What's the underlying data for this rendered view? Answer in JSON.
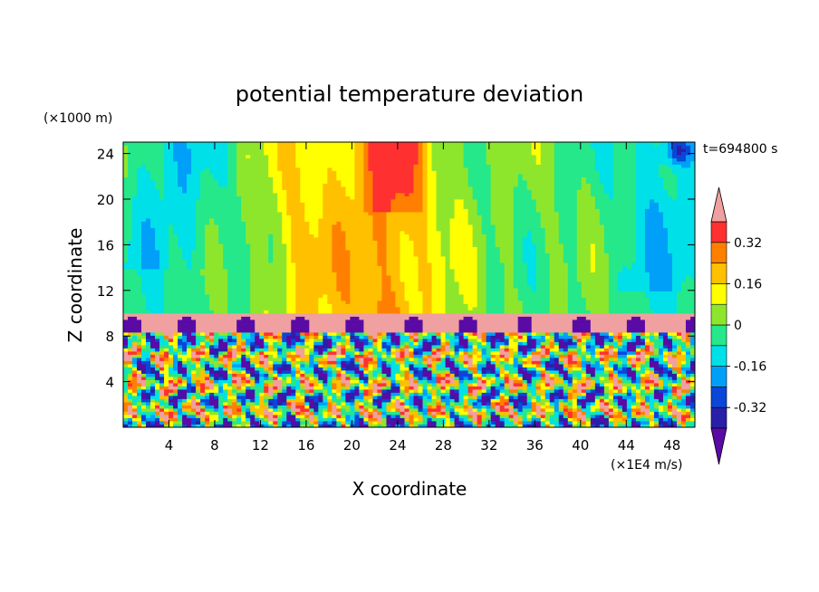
{
  "chart_data": {
    "type": "heatmap",
    "title": "potential temperature deviation",
    "xlabel": "X coordinate",
    "ylabel": "Z coordinate",
    "x_unit": "(×1E4 m/s)",
    "y_unit": "(×1000 m)",
    "time_label": "t=694800 s",
    "xlim": [
      0,
      50
    ],
    "ylim": [
      0,
      25
    ],
    "x_ticks": [
      "4",
      "8",
      "12",
      "16",
      "20",
      "24",
      "28",
      "32",
      "36",
      "40",
      "44",
      "48"
    ],
    "x_tick_values": [
      4,
      8,
      12,
      16,
      20,
      24,
      28,
      32,
      36,
      40,
      44,
      48
    ],
    "y_ticks": [
      "4",
      "8",
      "12",
      "16",
      "20",
      "24"
    ],
    "y_tick_values": [
      4,
      8,
      12,
      16,
      20,
      24
    ],
    "colorbar": {
      "levels": [
        -0.4,
        -0.32,
        -0.24,
        -0.16,
        -0.08,
        0,
        0.08,
        0.16,
        0.24,
        0.32,
        0.4
      ],
      "labels": [
        "-0.32",
        "-0.16",
        "0",
        "0.16",
        "0.32"
      ],
      "label_values": [
        -0.32,
        -0.16,
        0,
        0.16,
        0.32
      ],
      "colors": [
        "#5a0aa5",
        "#2a1fa8",
        "#0a46d8",
        "#00a0f8",
        "#00e0e8",
        "#25e88a",
        "#8ee62c",
        "#ffff00",
        "#ffc000",
        "#ff8000",
        "#ff3030",
        "#f0a0a0"
      ],
      "extend": "both"
    },
    "layers": [
      {
        "z_range": [
          0,
          8.2
        ],
        "description_value": "strongly mixed, values span -0.4 to 0.4"
      },
      {
        "z_range": [
          8.2,
          9.9
        ],
        "value": 0.42
      },
      {
        "z_range": [
          9.9,
          25
        ],
        "value_range": [
          -0.16,
          0.32
        ]
      }
    ]
  }
}
